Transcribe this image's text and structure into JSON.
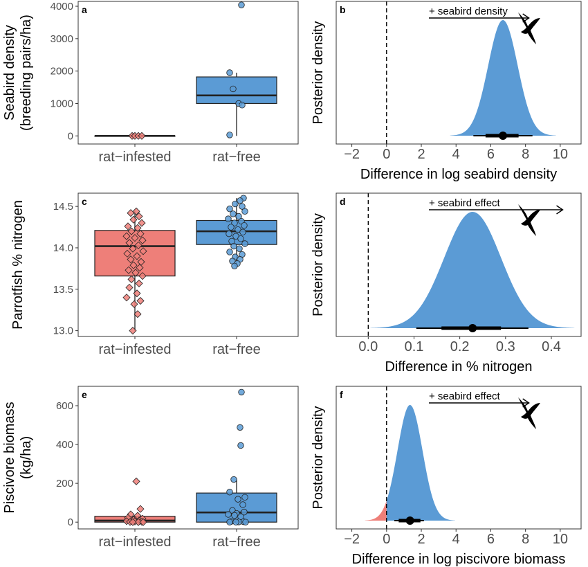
{
  "colors": {
    "rat_infested": "#ee7f79",
    "rat_free": "#5b9bd5",
    "negative_density": "#ee7f79",
    "positive_density": "#5b9bd5",
    "outline": "#333333",
    "zero_line": "#000000"
  },
  "chart_data": [
    {
      "type": "boxplot",
      "panel": "a",
      "ylabel": [
        "Seabird density",
        "(breeding pairs/ha)"
      ],
      "categories": [
        "rat−infested",
        "rat−free"
      ],
      "ylim": [
        -250,
        4150
      ],
      "yticks": [
        0,
        1000,
        2000,
        3000,
        4000
      ],
      "grid": false,
      "boxes": [
        {
          "category": "rat−infested",
          "q1": 0,
          "median": 0,
          "q3": 0,
          "whisker_low": 0,
          "whisker_high": 0,
          "marker": "diamond",
          "points": [
            {
              "x": -0.04,
              "y": 0
            },
            {
              "x": 0.0,
              "y": 0
            },
            {
              "x": 0.05,
              "y": 0
            },
            {
              "x": 0.1,
              "y": 0
            }
          ]
        },
        {
          "category": "rat−free",
          "q1": 1000,
          "median": 1250,
          "q3": 1820,
          "whisker_low": 0,
          "whisker_high": 1950,
          "marker": "circle",
          "points": [
            {
              "x": 0.07,
              "y": 4040
            },
            {
              "x": -0.1,
              "y": 1950
            },
            {
              "x": -0.05,
              "y": 1450
            },
            {
              "x": 0.03,
              "y": 1000
            },
            {
              "x": 0.08,
              "y": 950
            },
            {
              "x": -0.1,
              "y": 30
            }
          ]
        }
      ]
    },
    {
      "type": "density",
      "panel": "b",
      "xlabel": "Difference in log seabird density",
      "ylabel": "Posterior density",
      "xlim": [
        -2.9,
        11.2
      ],
      "xticks": [
        -2,
        0,
        2,
        4,
        6,
        8,
        10
      ],
      "distribution": {
        "center": 6.7,
        "sd": 0.85
      },
      "point_estimate": 6.7,
      "interval_inner": [
        5.7,
        7.6
      ],
      "interval_outer": [
        5.0,
        8.4
      ],
      "annotation": "+ seabird density",
      "arrow_to": 8.2,
      "grid": false
    },
    {
      "type": "boxplot",
      "panel": "c",
      "ylabel": [
        "Parrotfish % nitrogen"
      ],
      "categories": [
        "rat−infested",
        "rat−free"
      ],
      "ylim": [
        12.93,
        14.66
      ],
      "yticks": [
        13.0,
        13.5,
        14.0,
        14.5
      ],
      "grid": false,
      "boxes": [
        {
          "category": "rat−infested",
          "q1": 13.66,
          "median": 14.02,
          "q3": 14.21,
          "whisker_low": 13.0,
          "whisker_high": 14.45,
          "marker": "diamond",
          "points": [
            {
              "x": 0.02,
              "y": 14.44
            },
            {
              "x": -0.06,
              "y": 14.42
            },
            {
              "x": 0.06,
              "y": 14.38
            },
            {
              "x": -0.02,
              "y": 14.34
            },
            {
              "x": 0.1,
              "y": 14.3
            },
            {
              "x": -0.1,
              "y": 14.26
            },
            {
              "x": 0.04,
              "y": 14.24
            },
            {
              "x": -0.05,
              "y": 14.2
            },
            {
              "x": 0.08,
              "y": 14.17
            },
            {
              "x": -0.12,
              "y": 14.14
            },
            {
              "x": 0.0,
              "y": 14.12
            },
            {
              "x": 0.11,
              "y": 14.09
            },
            {
              "x": -0.08,
              "y": 14.06
            },
            {
              "x": 0.05,
              "y": 14.03
            },
            {
              "x": -0.03,
              "y": 13.99
            },
            {
              "x": 0.12,
              "y": 13.96
            },
            {
              "x": -0.11,
              "y": 13.93
            },
            {
              "x": 0.03,
              "y": 13.9
            },
            {
              "x": -0.06,
              "y": 13.86
            },
            {
              "x": 0.09,
              "y": 13.83
            },
            {
              "x": -0.02,
              "y": 13.79
            },
            {
              "x": 0.07,
              "y": 13.76
            },
            {
              "x": -0.09,
              "y": 13.73
            },
            {
              "x": 0.01,
              "y": 13.7
            },
            {
              "x": 0.11,
              "y": 13.66
            },
            {
              "x": -0.05,
              "y": 13.62
            },
            {
              "x": 0.06,
              "y": 13.57
            },
            {
              "x": -0.08,
              "y": 13.52
            },
            {
              "x": 0.03,
              "y": 13.45
            },
            {
              "x": -0.12,
              "y": 13.4
            },
            {
              "x": 0.08,
              "y": 13.36
            },
            {
              "x": -0.01,
              "y": 13.32
            },
            {
              "x": 0.04,
              "y": 13.2
            },
            {
              "x": -0.03,
              "y": 13.0
            }
          ]
        },
        {
          "category": "rat−free",
          "q1": 14.04,
          "median": 14.2,
          "q3": 14.33,
          "whisker_low": 13.78,
          "whisker_high": 14.6,
          "marker": "circle",
          "points": [
            {
              "x": 0.1,
              "y": 14.6
            },
            {
              "x": 0.05,
              "y": 14.57
            },
            {
              "x": -0.02,
              "y": 14.53
            },
            {
              "x": 0.08,
              "y": 14.5
            },
            {
              "x": -0.1,
              "y": 14.47
            },
            {
              "x": 0.12,
              "y": 14.44
            },
            {
              "x": -0.05,
              "y": 14.41
            },
            {
              "x": 0.03,
              "y": 14.38
            },
            {
              "x": -0.12,
              "y": 14.35
            },
            {
              "x": 0.07,
              "y": 14.32
            },
            {
              "x": -0.03,
              "y": 14.3
            },
            {
              "x": 0.11,
              "y": 14.27
            },
            {
              "x": -0.08,
              "y": 14.25
            },
            {
              "x": 0.02,
              "y": 14.22
            },
            {
              "x": 0.09,
              "y": 14.19
            },
            {
              "x": -0.11,
              "y": 14.17
            },
            {
              "x": -0.01,
              "y": 14.14
            },
            {
              "x": 0.06,
              "y": 14.11
            },
            {
              "x": -0.07,
              "y": 14.08
            },
            {
              "x": 0.12,
              "y": 14.05
            },
            {
              "x": -0.04,
              "y": 14.02
            },
            {
              "x": 0.04,
              "y": 13.99
            },
            {
              "x": -0.1,
              "y": 13.95
            },
            {
              "x": 0.08,
              "y": 13.92
            },
            {
              "x": -0.02,
              "y": 13.89
            },
            {
              "x": 0.05,
              "y": 13.86
            },
            {
              "x": -0.06,
              "y": 13.84
            },
            {
              "x": 0.01,
              "y": 13.81
            },
            {
              "x": -0.03,
              "y": 13.78
            }
          ]
        }
      ]
    },
    {
      "type": "density",
      "panel": "d",
      "xlabel": "Difference in % nitrogen",
      "ylabel": "Posterior density",
      "xlim": [
        -0.07,
        0.465
      ],
      "xticks": [
        0.0,
        0.1,
        0.2,
        0.3,
        0.4
      ],
      "xtick_format": "1dp",
      "distribution": {
        "center": 0.228,
        "sd": 0.062
      },
      "point_estimate": 0.228,
      "interval_inner": [
        0.16,
        0.29
      ],
      "interval_outer": [
        0.105,
        0.35
      ],
      "annotation": "+ seabird effect",
      "arrow_to": 0.425,
      "grid": false
    },
    {
      "type": "boxplot",
      "panel": "e",
      "ylabel": [
        "Piscivore biomass",
        "(kg/ha)"
      ],
      "categories": [
        "rat−infested",
        "rat−free"
      ],
      "ylim": [
        -35,
        700
      ],
      "yticks": [
        0,
        200,
        400,
        600
      ],
      "grid": false,
      "boxes": [
        {
          "category": "rat−infested",
          "q1": 0,
          "median": 8,
          "q3": 30,
          "whisker_low": 0,
          "whisker_high": 30,
          "marker": "diamond",
          "points": [
            {
              "x": 0.02,
              "y": 210
            },
            {
              "x": 0.08,
              "y": 68
            },
            {
              "x": -0.06,
              "y": 40
            },
            {
              "x": 0.04,
              "y": 33
            },
            {
              "x": -0.1,
              "y": 22
            },
            {
              "x": 0.11,
              "y": 18
            },
            {
              "x": -0.02,
              "y": 12
            },
            {
              "x": 0.06,
              "y": 8
            },
            {
              "x": -0.12,
              "y": 5
            },
            {
              "x": 0.0,
              "y": 3
            },
            {
              "x": 0.1,
              "y": 2
            },
            {
              "x": -0.07,
              "y": 1
            },
            {
              "x": 0.05,
              "y": 0
            },
            {
              "x": -0.03,
              "y": 0
            },
            {
              "x": 0.12,
              "y": 0
            }
          ]
        },
        {
          "category": "rat−free",
          "q1": 0,
          "median": 50,
          "q3": 150,
          "whisker_low": 0,
          "whisker_high": 220,
          "marker": "circle",
          "points": [
            {
              "x": 0.07,
              "y": 670
            },
            {
              "x": 0.05,
              "y": 488
            },
            {
              "x": 0.06,
              "y": 395
            },
            {
              "x": -0.04,
              "y": 220
            },
            {
              "x": -0.1,
              "y": 155
            },
            {
              "x": 0.12,
              "y": 128
            },
            {
              "x": 0.02,
              "y": 118
            },
            {
              "x": 0.09,
              "y": 90
            },
            {
              "x": -0.06,
              "y": 60
            },
            {
              "x": 0.11,
              "y": 52
            },
            {
              "x": 0.0,
              "y": 45
            },
            {
              "x": -0.12,
              "y": 40
            },
            {
              "x": -0.03,
              "y": 35
            },
            {
              "x": 0.06,
              "y": 28
            },
            {
              "x": -0.08,
              "y": 3
            },
            {
              "x": 0.1,
              "y": 2
            },
            {
              "x": 0.03,
              "y": 1
            },
            {
              "x": -0.1,
              "y": 0
            },
            {
              "x": -0.01,
              "y": 0
            },
            {
              "x": 0.13,
              "y": 0
            }
          ]
        }
      ]
    },
    {
      "type": "density",
      "panel": "f",
      "xlabel": "Difference in log piscivore biomass",
      "ylabel": "Posterior density",
      "xlim": [
        -2.9,
        11.2
      ],
      "xticks": [
        -2,
        0,
        2,
        4,
        6,
        8,
        10
      ],
      "distribution": {
        "center": 1.35,
        "sd": 0.72
      },
      "point_estimate": 1.35,
      "interval_inner": [
        0.7,
        1.95
      ],
      "interval_outer": [
        0.45,
        2.15
      ],
      "annotation": "+ seabird effect",
      "arrow_to": 8.2,
      "grid": false
    }
  ]
}
